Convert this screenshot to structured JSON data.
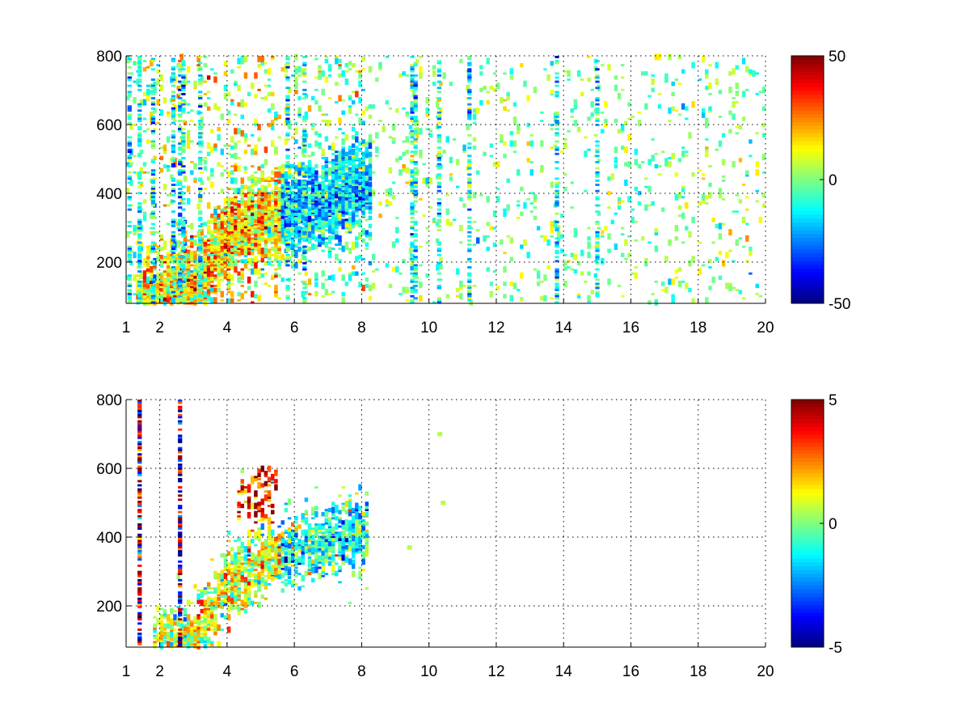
{
  "chart_data": [
    {
      "type": "heatmap",
      "xlim": [
        1,
        20
      ],
      "ylim": [
        80,
        800
      ],
      "x_ticks": [
        1,
        2,
        4,
        6,
        8,
        10,
        12,
        14,
        16,
        18,
        20
      ],
      "x_tick_labels": [
        "1",
        "2",
        "4",
        "6",
        "8",
        "10",
        "12",
        "14",
        "16",
        "18",
        "20"
      ],
      "y_ticks": [
        200,
        400,
        600,
        800
      ],
      "y_tick_labels": [
        "200",
        "400",
        "600",
        "800"
      ],
      "grid": true,
      "colormap": "jet",
      "clim": [
        -50,
        50
      ],
      "colorbar_tick_labels": [
        "50",
        "0",
        "-50"
      ],
      "colorbar_placement": "right",
      "dense_region": {
        "ridge": [
          [
            1.5,
            80
          ],
          [
            3,
            130
          ],
          [
            4,
            260
          ],
          [
            5,
            320
          ],
          [
            6,
            345
          ],
          [
            7,
            380
          ],
          [
            8,
            420
          ]
        ],
        "x_extent": [
          1.3,
          8.3
        ],
        "y_spread": 140
      },
      "vertical_streaks_x": [
        1.1,
        1.4,
        1.8,
        2.4,
        2.6,
        2.7,
        3.2,
        5.8,
        6.3,
        9.5,
        9.6,
        10.3,
        11.2,
        13.8,
        15.0
      ],
      "sparse_x_extent": [
        8.3,
        20
      ]
    },
    {
      "type": "heatmap",
      "xlim": [
        1,
        20
      ],
      "ylim": [
        80,
        800
      ],
      "x_ticks": [
        1,
        2,
        4,
        6,
        8,
        10,
        12,
        14,
        16,
        18,
        20
      ],
      "x_tick_labels": [
        "1",
        "2",
        "4",
        "6",
        "8",
        "10",
        "12",
        "14",
        "16",
        "18",
        "20"
      ],
      "y_ticks": [
        200,
        400,
        600,
        800
      ],
      "y_tick_labels": [
        "200",
        "400",
        "600",
        "800"
      ],
      "grid": true,
      "colormap": "jet",
      "clim": [
        -5,
        5
      ],
      "colorbar_tick_labels": [
        "5",
        "0",
        "-5"
      ],
      "colorbar_placement": "right",
      "dense_region": {
        "ridge": [
          [
            1.8,
            85
          ],
          [
            3,
            110
          ],
          [
            4,
            260
          ],
          [
            5,
            330
          ],
          [
            6,
            360
          ],
          [
            7,
            390
          ],
          [
            8,
            410
          ]
        ],
        "x_extent": [
          1.8,
          8.2
        ],
        "y_spread": 90
      },
      "vertical_streaks_x": [
        1.4,
        2.6
      ],
      "isolated_points": [
        [
          9.4,
          370
        ],
        [
          10.3,
          700
        ],
        [
          10.4,
          500
        ]
      ]
    }
  ]
}
